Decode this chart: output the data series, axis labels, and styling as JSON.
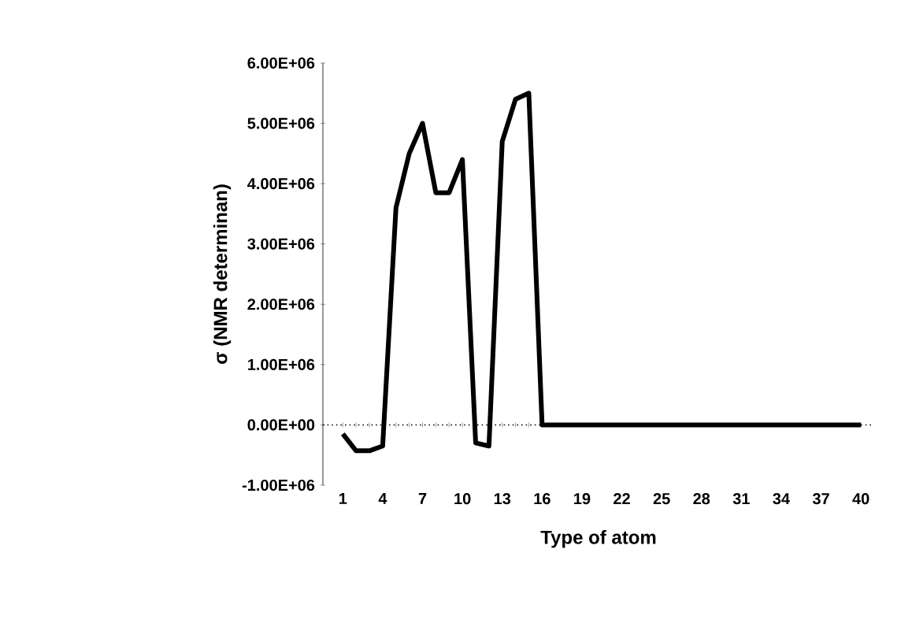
{
  "chart_data": {
    "type": "line",
    "xlabel": "Type of atom",
    "ylabel": "σ (NMR determinan)",
    "color": "#000000",
    "categories": [
      "1",
      null,
      null,
      "4",
      null,
      null,
      "7",
      null,
      null,
      "10",
      null,
      null,
      "13",
      null,
      null,
      "16",
      null,
      null,
      "19",
      null,
      null,
      "22",
      null,
      null,
      "25",
      null,
      null,
      "28",
      null,
      null,
      "31",
      null,
      null,
      "34",
      null,
      null,
      "37",
      null,
      null,
      "40"
    ],
    "values": [
      -150000,
      -430000,
      -430000,
      -350000,
      3600000,
      4500000,
      5000000,
      3850000,
      3850000,
      4400000,
      -300000,
      -350000,
      4700000,
      5400000,
      5500000,
      0,
      0,
      0,
      0,
      0,
      0,
      0,
      0,
      0,
      0,
      0,
      0,
      0,
      0,
      0,
      0,
      0,
      0,
      0,
      0,
      0,
      0,
      0,
      0,
      0
    ],
    "ylim": [
      -1000000,
      6000000
    ],
    "yticks": [
      {
        "value": -1000000,
        "label": "-1.00E+06"
      },
      {
        "value": 0,
        "label": "0.00E+00"
      },
      {
        "value": 1000000,
        "label": "1.00E+06"
      },
      {
        "value": 2000000,
        "label": "2.00E+06"
      },
      {
        "value": 3000000,
        "label": "3.00E+06"
      },
      {
        "value": 4000000,
        "label": "4.00E+06"
      },
      {
        "value": 5000000,
        "label": "5.00E+06"
      },
      {
        "value": 6000000,
        "label": "6.00E+06"
      }
    ]
  }
}
